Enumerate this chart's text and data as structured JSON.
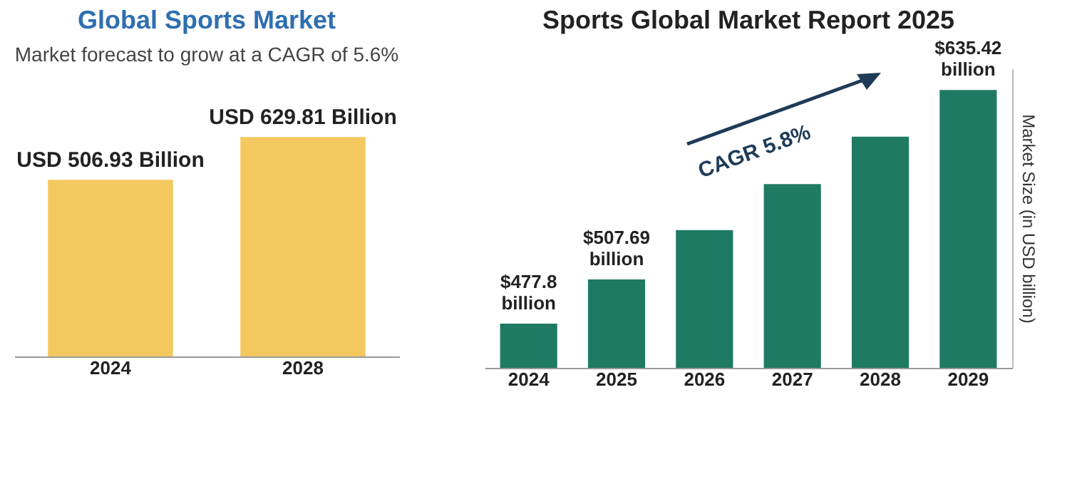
{
  "chart_data": [
    {
      "type": "bar",
      "title": "Global Sports Market",
      "subtitle": "Market forecast to grow at a CAGR of 5.6%",
      "categories": [
        "2024",
        "2028"
      ],
      "values": [
        506.93,
        629.81
      ],
      "colors": [
        "#f3c85e",
        "#f3c85e"
      ],
      "value_labels": [
        "USD 506.93 Billion",
        "USD 629.81 Billion"
      ]
    },
    {
      "type": "bar",
      "title": "Sports Global Market Report 2025",
      "ylabel": "Market Size (in USD billion)",
      "ylim": [
        448,
        650
      ],
      "categories": [
        "2024",
        "2025",
        "2026",
        "2027",
        "2028",
        "2029"
      ],
      "values": [
        477.8,
        507.69,
        541,
        572,
        604,
        635.42
      ],
      "color": "#1f7a63",
      "value_labels": [
        "$477.8 billion",
        "$507.69 billion",
        null,
        null,
        null,
        "$635.42 billion"
      ],
      "annotations": [
        "CAGR 5.8%"
      ]
    }
  ]
}
